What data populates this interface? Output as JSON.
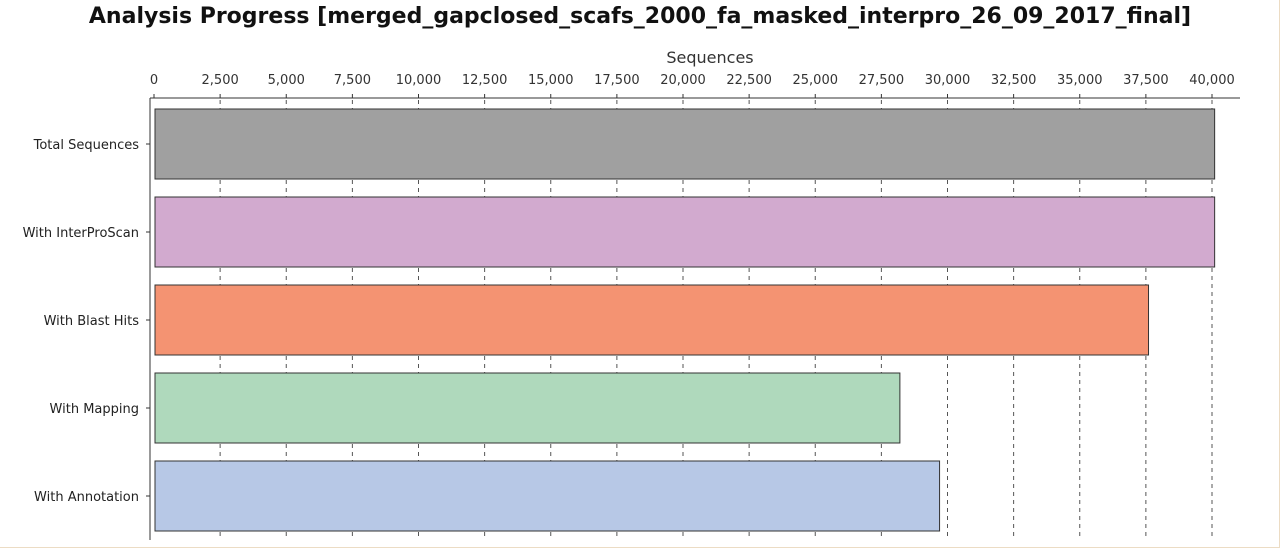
{
  "chart_data": {
    "type": "bar",
    "orientation": "horizontal",
    "title": "Analysis Progress [merged_gapclosed_scafs_2000_fa_masked_interpro_26_09_2017_final]",
    "xlabel": "Sequences",
    "ylabel": "",
    "xlim": [
      0,
      41000
    ],
    "x_ticks": [
      "0",
      "2,500",
      "5,000",
      "7,500",
      "10,000",
      "12,500",
      "15,000",
      "17,500",
      "20,000",
      "22,500",
      "25,000",
      "27,500",
      "30,000",
      "32,500",
      "35,000",
      "37,500",
      "40,000"
    ],
    "x_tick_values": [
      0,
      2500,
      5000,
      7500,
      10000,
      12500,
      15000,
      17500,
      20000,
      22500,
      25000,
      27500,
      30000,
      32500,
      35000,
      37500,
      40000
    ],
    "x_axis_position": "top",
    "grid": true,
    "categories": [
      "Total Sequences",
      "With InterProScan",
      "With Blast Hits",
      "With Mapping",
      "With Annotation"
    ],
    "values": [
      40100,
      40100,
      37600,
      28200,
      29700
    ],
    "colors": [
      "#a0a0a0",
      "#d2aacf",
      "#f49372",
      "#afd9bc",
      "#b7c8e6"
    ]
  }
}
